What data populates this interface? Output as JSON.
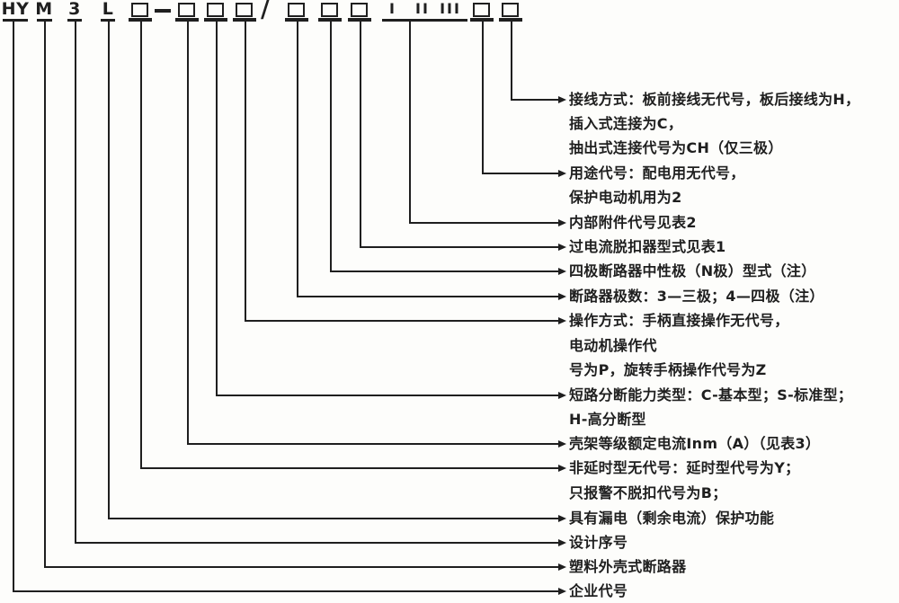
{
  "colors": {
    "line": "#1f1f1f",
    "text": "#1f1f1f",
    "background": "#fdfdfb"
  },
  "code_row": {
    "letters": [
      "HY",
      "M",
      "3",
      "L"
    ],
    "separator_dash": "—",
    "separator_slash": "/",
    "roman_numerals": [
      "I",
      "II",
      "III"
    ]
  },
  "annotation_lines": [
    {
      "text": "接线方式：板前接线无代号，板后接线为H，"
    },
    {
      "text": "插入式连接为C，"
    },
    {
      "text": "抽出式连接代号为CH（仅三极）"
    },
    {
      "text": "用途代号：配电用无代号，"
    },
    {
      "text": "保护电动机用为2"
    },
    {
      "text": "内部附件代号见表2"
    },
    {
      "text": "过电流脱扣器型式见表1"
    },
    {
      "text": "四极断路器中性极（N极）型式（注）"
    },
    {
      "text": "断路器极数：3—三极；4—四极（注）"
    },
    {
      "text": "操作方式：手柄直接操作无代号，"
    },
    {
      "text": "电动机操作代"
    },
    {
      "text": "号为P，旋转手柄操作代号为Z"
    },
    {
      "text": "短路分断能力类型：C-基本型；S-标准型；"
    },
    {
      "text": "H-高分断型"
    },
    {
      "text": "壳架等级额定电流Inm（A）（见表3）"
    },
    {
      "text": "非延时型无代号：延时型代号为Y；"
    },
    {
      "text": "只报警不脱扣代号为B；"
    },
    {
      "text": "具有漏电（剩余电流）保护功能"
    },
    {
      "text": "设计序号"
    },
    {
      "text": "塑料外壳式断路器"
    },
    {
      "text": "企业代号"
    }
  ]
}
